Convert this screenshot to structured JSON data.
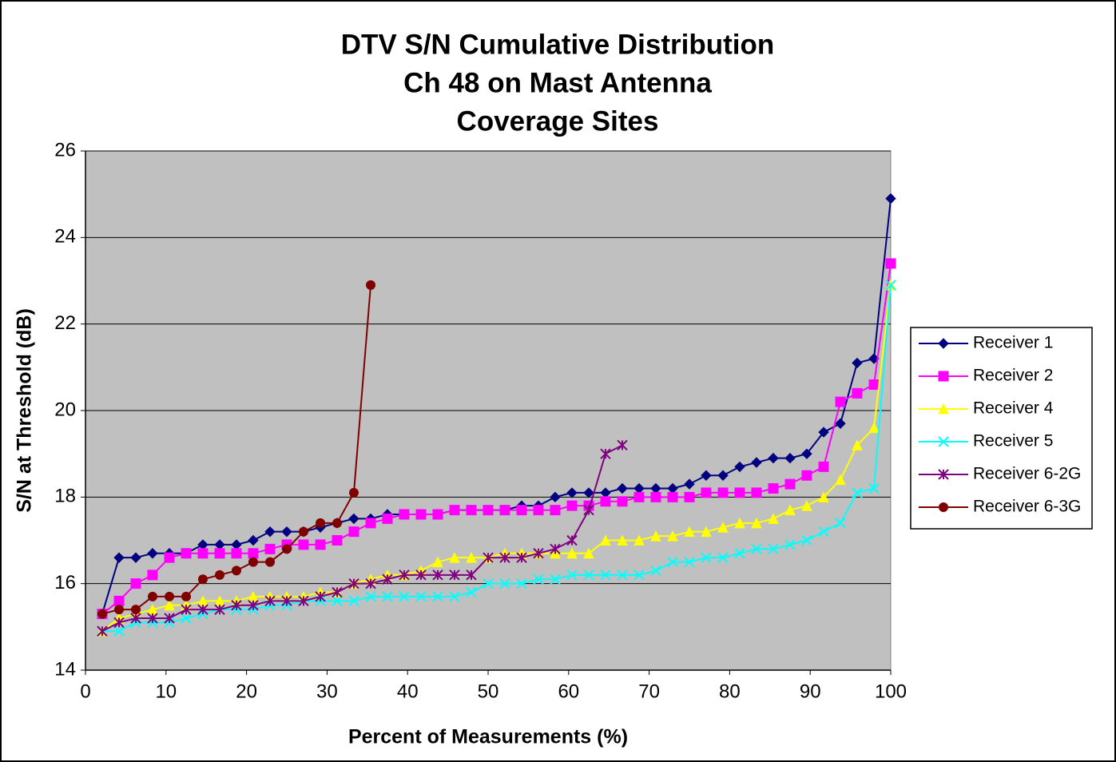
{
  "chart_data": {
    "type": "line",
    "title": [
      "DTV S/N Cumulative Distribution",
      "Ch 48 on Mast Antenna",
      "Coverage Sites"
    ],
    "x_label": "Percent of Measurements (%)",
    "y_label": "S/N at Threshold (dB)",
    "x": [
      2.08,
      4.17,
      6.25,
      8.33,
      10.42,
      12.5,
      14.58,
      16.67,
      18.75,
      20.83,
      22.92,
      25,
      27.08,
      29.17,
      31.25,
      33.33,
      35.42,
      37.5,
      39.58,
      41.67,
      43.75,
      45.83,
      47.92,
      50,
      52.08,
      54.17,
      56.25,
      58.33,
      60.42,
      62.5,
      64.58,
      66.67,
      68.75,
      70.83,
      72.92,
      75,
      77.08,
      79.17,
      81.25,
      83.33,
      85.42,
      87.5,
      89.58,
      91.67,
      93.75,
      95.83,
      97.92,
      100
    ],
    "xlim": [
      0,
      100
    ],
    "xticks": [
      0,
      10,
      20,
      30,
      40,
      50,
      60,
      70,
      80,
      90,
      100
    ],
    "ylim": [
      14,
      26
    ],
    "yticks": [
      14,
      16,
      18,
      20,
      22,
      24,
      26
    ],
    "grid": true,
    "legend": "right",
    "series": [
      {
        "name": "Receiver 1",
        "color": "#000080",
        "marker": "diamond",
        "values": [
          15.3,
          16.6,
          16.6,
          16.7,
          16.7,
          16.7,
          16.9,
          16.9,
          16.9,
          17.0,
          17.2,
          17.2,
          17.2,
          17.3,
          17.4,
          17.5,
          17.5,
          17.6,
          17.6,
          17.6,
          17.6,
          17.7,
          17.7,
          17.7,
          17.7,
          17.8,
          17.8,
          18.0,
          18.1,
          18.1,
          18.1,
          18.2,
          18.2,
          18.2,
          18.2,
          18.3,
          18.5,
          18.5,
          18.7,
          18.8,
          18.9,
          18.9,
          19.0,
          19.5,
          19.7,
          21.1,
          21.2,
          24.9
        ]
      },
      {
        "name": "Receiver 2",
        "color": "#ff00ff",
        "marker": "square",
        "values": [
          15.3,
          15.6,
          16.0,
          16.2,
          16.6,
          16.7,
          16.7,
          16.7,
          16.7,
          16.7,
          16.8,
          16.9,
          16.9,
          16.9,
          17.0,
          17.2,
          17.4,
          17.5,
          17.6,
          17.6,
          17.6,
          17.7,
          17.7,
          17.7,
          17.7,
          17.7,
          17.7,
          17.7,
          17.8,
          17.8,
          17.9,
          17.9,
          18.0,
          18.0,
          18.0,
          18.0,
          18.1,
          18.1,
          18.1,
          18.1,
          18.2,
          18.3,
          18.5,
          18.7,
          20.2,
          20.4,
          20.6,
          23.4
        ]
      },
      {
        "name": "Receiver 4",
        "color": "#ffff00",
        "marker": "triangle",
        "values": [
          14.9,
          15.2,
          15.3,
          15.4,
          15.5,
          15.5,
          15.6,
          15.6,
          15.6,
          15.7,
          15.7,
          15.7,
          15.7,
          15.8,
          15.8,
          16.0,
          16.1,
          16.2,
          16.2,
          16.3,
          16.5,
          16.6,
          16.6,
          16.6,
          16.7,
          16.7,
          16.7,
          16.7,
          16.7,
          16.7,
          17.0,
          17.0,
          17.0,
          17.1,
          17.1,
          17.2,
          17.2,
          17.3,
          17.4,
          17.4,
          17.5,
          17.7,
          17.8,
          18.0,
          18.4,
          19.2,
          19.6,
          22.9
        ]
      },
      {
        "name": "Receiver 5",
        "color": "#00ffff",
        "marker": "x",
        "values": [
          14.9,
          14.9,
          15.1,
          15.1,
          15.1,
          15.2,
          15.3,
          15.4,
          15.4,
          15.4,
          15.5,
          15.5,
          15.6,
          15.6,
          15.6,
          15.6,
          15.7,
          15.7,
          15.7,
          15.7,
          15.7,
          15.7,
          15.8,
          16.0,
          16.0,
          16.0,
          16.1,
          16.1,
          16.2,
          16.2,
          16.2,
          16.2,
          16.2,
          16.3,
          16.5,
          16.5,
          16.6,
          16.6,
          16.7,
          16.8,
          16.8,
          16.9,
          17.0,
          17.2,
          17.4,
          18.1,
          18.2,
          22.9
        ]
      },
      {
        "name": "Receiver 6-2G",
        "color": "#800080",
        "marker": "star",
        "values": [
          14.9,
          15.1,
          15.2,
          15.2,
          15.2,
          15.4,
          15.4,
          15.4,
          15.5,
          15.5,
          15.6,
          15.6,
          15.6,
          15.7,
          15.8,
          16.0,
          16.0,
          16.1,
          16.2,
          16.2,
          16.2,
          16.2,
          16.2,
          16.6,
          16.6,
          16.6,
          16.7,
          16.8,
          17.0,
          17.7,
          19.0,
          19.2,
          null,
          null,
          null,
          null,
          null,
          null,
          null,
          null,
          null,
          null,
          null,
          null,
          null,
          null,
          null,
          null
        ]
      },
      {
        "name": "Receiver 6-3G",
        "color": "#800000",
        "marker": "circle",
        "values": [
          15.3,
          15.4,
          15.4,
          15.7,
          15.7,
          15.7,
          16.1,
          16.2,
          16.3,
          16.5,
          16.5,
          16.8,
          17.2,
          17.4,
          17.4,
          18.1,
          22.9,
          null,
          null,
          null,
          null,
          null,
          null,
          null,
          null,
          null,
          null,
          null,
          null,
          null,
          null,
          null,
          null,
          null,
          null,
          null,
          null,
          null,
          null,
          null,
          null,
          null,
          null,
          null,
          null,
          null,
          null,
          null
        ]
      }
    ]
  }
}
